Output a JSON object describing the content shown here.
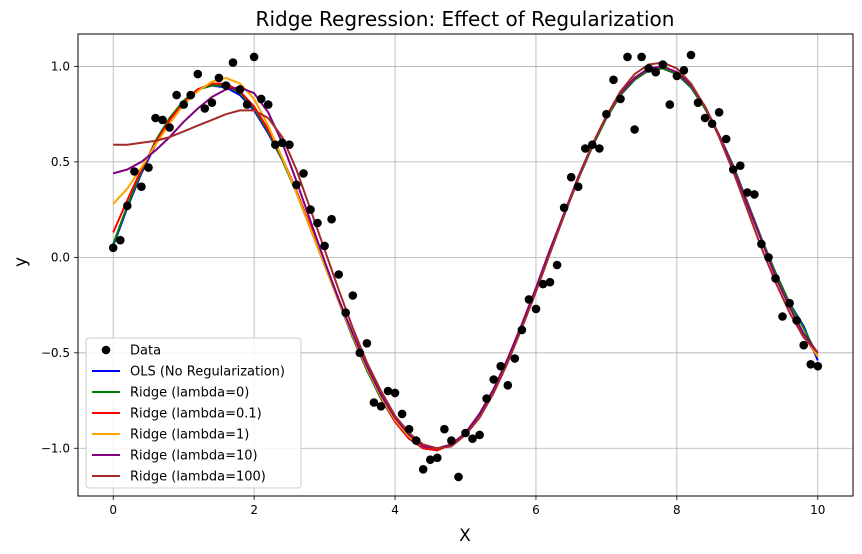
{
  "chart_data": {
    "type": "line",
    "title": "Ridge Regression: Effect of Regularization",
    "xlabel": "X",
    "ylabel": "y",
    "xlim": [
      -0.5,
      10.5
    ],
    "ylim": [
      -1.25,
      1.17
    ],
    "xticks": [
      0,
      2,
      4,
      6,
      8,
      10
    ],
    "yticks": [
      -1.0,
      -0.5,
      0.0,
      0.5,
      1.0
    ],
    "xtick_labels": [
      "0",
      "2",
      "4",
      "6",
      "8",
      "10"
    ],
    "ytick_labels": [
      "−1.0",
      "−0.5",
      "0.0",
      "0.5",
      "1.0"
    ],
    "grid": true,
    "legend_position": "lower-left",
    "scatter": {
      "name": "Data",
      "color": "#000000",
      "x": [
        0,
        0.1,
        0.2,
        0.3,
        0.4,
        0.5,
        0.6,
        0.7,
        0.8,
        0.9,
        1.0,
        1.1,
        1.2,
        1.3,
        1.4,
        1.5,
        1.6,
        1.7,
        1.8,
        1.9,
        2.0,
        2.1,
        2.2,
        2.3,
        2.4,
        2.5,
        2.6,
        2.7,
        2.8,
        2.9,
        3.0,
        3.1,
        3.2,
        3.3,
        3.4,
        3.5,
        3.6,
        3.7,
        3.8,
        3.9,
        4.0,
        4.1,
        4.2,
        4.3,
        4.4,
        4.5,
        4.6,
        4.7,
        4.8,
        4.9,
        5.0,
        5.1,
        5.2,
        5.3,
        5.4,
        5.5,
        5.6,
        5.7,
        5.8,
        5.9,
        6.0,
        6.1,
        6.2,
        6.3,
        6.4,
        6.5,
        6.6,
        6.7,
        6.8,
        6.9,
        7.0,
        7.1,
        7.2,
        7.3,
        7.4,
        7.5,
        7.6,
        7.7,
        7.8,
        7.9,
        8.0,
        8.1,
        8.2,
        8.3,
        8.4,
        8.5,
        8.6,
        8.7,
        8.8,
        8.9,
        9.0,
        9.1,
        9.2,
        9.3,
        9.4,
        9.5,
        9.6,
        9.7,
        9.8,
        9.9,
        10.0
      ],
      "y": [
        0.05,
        0.09,
        0.27,
        0.45,
        0.37,
        0.47,
        0.73,
        0.72,
        0.68,
        0.85,
        0.8,
        0.85,
        0.96,
        0.78,
        0.81,
        0.94,
        0.9,
        1.02,
        0.88,
        0.8,
        1.05,
        0.83,
        0.8,
        0.59,
        0.6,
        0.59,
        0.38,
        0.44,
        0.25,
        0.18,
        0.06,
        0.2,
        -0.09,
        -0.29,
        -0.2,
        -0.5,
        -0.45,
        -0.76,
        -0.78,
        -0.7,
        -0.71,
        -0.82,
        -0.9,
        -0.96,
        -1.11,
        -1.06,
        -1.05,
        -0.9,
        -0.96,
        -1.15,
        -0.92,
        -0.95,
        -0.93,
        -0.74,
        -0.64,
        -0.57,
        -0.67,
        -0.53,
        -0.38,
        -0.22,
        -0.27,
        -0.14,
        -0.13,
        -0.04,
        0.26,
        0.42,
        0.37,
        0.57,
        0.59,
        0.57,
        0.75,
        0.93,
        0.83,
        1.05,
        0.67,
        1.05,
        0.99,
        0.97,
        1.01,
        0.8,
        0.95,
        0.98,
        1.06,
        0.81,
        0.73,
        0.7,
        0.76,
        0.62,
        0.46,
        0.48,
        0.34,
        0.33,
        0.07,
        0.0,
        -0.11,
        -0.31,
        -0.24,
        -0.33,
        -0.46,
        -0.56,
        -0.57
      ]
    },
    "series": [
      {
        "name": "OLS (No Regularization)",
        "color": "#0000ff",
        "x": [
          0,
          0.2,
          0.4,
          0.6,
          0.8,
          1.0,
          1.2,
          1.4,
          1.6,
          1.8,
          2.0,
          2.2,
          2.4,
          2.6,
          2.8,
          3.0,
          3.2,
          3.4,
          3.6,
          3.8,
          4.0,
          4.2,
          4.4,
          4.6,
          4.8,
          5.0,
          5.2,
          5.4,
          5.6,
          5.8,
          6.0,
          6.2,
          6.4,
          6.6,
          6.8,
          7.0,
          7.2,
          7.4,
          7.6,
          7.8,
          8.0,
          8.2,
          8.4,
          8.6,
          8.8,
          9.0,
          9.2,
          9.4,
          9.6,
          9.8,
          10.0
        ],
        "y": [
          0.06,
          0.26,
          0.44,
          0.59,
          0.72,
          0.82,
          0.88,
          0.9,
          0.89,
          0.85,
          0.77,
          0.65,
          0.51,
          0.34,
          0.15,
          -0.04,
          -0.23,
          -0.42,
          -0.59,
          -0.74,
          -0.86,
          -0.95,
          -1.0,
          -1.01,
          -0.98,
          -0.92,
          -0.82,
          -0.69,
          -0.54,
          -0.36,
          -0.17,
          0.03,
          0.22,
          0.41,
          0.58,
          0.73,
          0.85,
          0.93,
          0.98,
          0.99,
          0.96,
          0.89,
          0.78,
          0.64,
          0.48,
          0.29,
          0.1,
          -0.08,
          -0.24,
          -0.36,
          -0.54
        ]
      },
      {
        "name": "Ridge (lambda=0)",
        "color": "#008000",
        "x": [
          0,
          0.2,
          0.4,
          0.6,
          0.8,
          1.0,
          1.2,
          1.4,
          1.6,
          1.8,
          2.0,
          2.2,
          2.4,
          2.6,
          2.8,
          3.0,
          3.2,
          3.4,
          3.6,
          3.8,
          4.0,
          4.2,
          4.4,
          4.6,
          4.8,
          5.0,
          5.2,
          5.4,
          5.6,
          5.8,
          6.0,
          6.2,
          6.4,
          6.6,
          6.8,
          7.0,
          7.2,
          7.4,
          7.6,
          7.8,
          8.0,
          8.2,
          8.4,
          8.6,
          8.8,
          9.0,
          9.2,
          9.4,
          9.6,
          9.8,
          10.0
        ],
        "y": [
          0.07,
          0.27,
          0.45,
          0.61,
          0.73,
          0.82,
          0.88,
          0.9,
          0.9,
          0.86,
          0.78,
          0.66,
          0.51,
          0.34,
          0.15,
          -0.04,
          -0.23,
          -0.42,
          -0.59,
          -0.74,
          -0.86,
          -0.95,
          -1.0,
          -1.01,
          -0.98,
          -0.92,
          -0.82,
          -0.69,
          -0.53,
          -0.36,
          -0.17,
          0.03,
          0.22,
          0.41,
          0.58,
          0.73,
          0.85,
          0.93,
          0.98,
          0.99,
          0.96,
          0.89,
          0.78,
          0.64,
          0.48,
          0.29,
          0.1,
          -0.08,
          -0.24,
          -0.37,
          -0.52
        ]
      },
      {
        "name": "Ridge (lambda=0.1)",
        "color": "#ff0000",
        "x": [
          0,
          0.2,
          0.4,
          0.6,
          0.8,
          1.0,
          1.2,
          1.4,
          1.6,
          1.8,
          2.0,
          2.2,
          2.4,
          2.6,
          2.8,
          3.0,
          3.2,
          3.4,
          3.6,
          3.8,
          4.0,
          4.2,
          4.4,
          4.6,
          4.8,
          5.0,
          5.2,
          5.4,
          5.6,
          5.8,
          6.0,
          6.2,
          6.4,
          6.6,
          6.8,
          7.0,
          7.2,
          7.4,
          7.6,
          7.8,
          8.0,
          8.2,
          8.4,
          8.6,
          8.8,
          9.0,
          9.2,
          9.4,
          9.6,
          9.8,
          10.0
        ],
        "y": [
          0.13,
          0.3,
          0.46,
          0.6,
          0.72,
          0.81,
          0.88,
          0.91,
          0.91,
          0.87,
          0.79,
          0.67,
          0.52,
          0.35,
          0.16,
          -0.03,
          -0.22,
          -0.41,
          -0.58,
          -0.73,
          -0.86,
          -0.95,
          -1.0,
          -1.01,
          -0.98,
          -0.92,
          -0.82,
          -0.69,
          -0.53,
          -0.35,
          -0.16,
          0.04,
          0.23,
          0.42,
          0.59,
          0.74,
          0.86,
          0.94,
          0.99,
          1.0,
          0.97,
          0.9,
          0.79,
          0.64,
          0.47,
          0.28,
          0.09,
          -0.1,
          -0.26,
          -0.41,
          -0.52
        ]
      },
      {
        "name": "Ridge (lambda=1)",
        "color": "#ffa500",
        "x": [
          0,
          0.2,
          0.4,
          0.6,
          0.8,
          1.0,
          1.2,
          1.4,
          1.6,
          1.8,
          2.0,
          2.2,
          2.4,
          2.6,
          2.8,
          3.0,
          3.2,
          3.4,
          3.6,
          3.8,
          4.0,
          4.2,
          4.4,
          4.6,
          4.8,
          5.0,
          5.2,
          5.4,
          5.6,
          5.8,
          6.0,
          6.2,
          6.4,
          6.6,
          6.8,
          7.0,
          7.2,
          7.4,
          7.6,
          7.8,
          8.0,
          8.2,
          8.4,
          8.6,
          8.8,
          9.0,
          9.2,
          9.4,
          9.6,
          9.8,
          10.0
        ],
        "y": [
          0.28,
          0.36,
          0.47,
          0.59,
          0.7,
          0.8,
          0.87,
          0.92,
          0.94,
          0.91,
          0.83,
          0.69,
          0.52,
          0.34,
          0.15,
          -0.04,
          -0.23,
          -0.41,
          -0.58,
          -0.73,
          -0.85,
          -0.94,
          -0.99,
          -1.0,
          -0.98,
          -0.92,
          -0.82,
          -0.69,
          -0.53,
          -0.35,
          -0.16,
          0.04,
          0.23,
          0.42,
          0.59,
          0.74,
          0.86,
          0.94,
          0.99,
          1.0,
          0.97,
          0.9,
          0.79,
          0.64,
          0.47,
          0.28,
          0.09,
          -0.1,
          -0.26,
          -0.4,
          -0.52
        ]
      },
      {
        "name": "Ridge (lambda=10)",
        "color": "#800080",
        "x": [
          0,
          0.2,
          0.4,
          0.6,
          0.8,
          1.0,
          1.2,
          1.4,
          1.6,
          1.8,
          2.0,
          2.2,
          2.4,
          2.6,
          2.8,
          3.0,
          3.2,
          3.4,
          3.6,
          3.8,
          4.0,
          4.2,
          4.4,
          4.6,
          4.8,
          5.0,
          5.2,
          5.4,
          5.6,
          5.8,
          6.0,
          6.2,
          6.4,
          6.6,
          6.8,
          7.0,
          7.2,
          7.4,
          7.6,
          7.8,
          8.0,
          8.2,
          8.4,
          8.6,
          8.8,
          9.0,
          9.2,
          9.4,
          9.6,
          9.8,
          10.0
        ],
        "y": [
          0.44,
          0.46,
          0.5,
          0.56,
          0.63,
          0.71,
          0.78,
          0.84,
          0.88,
          0.89,
          0.86,
          0.76,
          0.6,
          0.4,
          0.19,
          -0.02,
          -0.22,
          -0.4,
          -0.57,
          -0.72,
          -0.84,
          -0.93,
          -0.99,
          -1.0,
          -0.98,
          -0.92,
          -0.82,
          -0.69,
          -0.53,
          -0.35,
          -0.16,
          0.04,
          0.23,
          0.42,
          0.59,
          0.74,
          0.86,
          0.94,
          0.99,
          1.0,
          0.97,
          0.9,
          0.79,
          0.64,
          0.47,
          0.28,
          0.09,
          -0.1,
          -0.26,
          -0.4,
          -0.5
        ]
      },
      {
        "name": "Ridge (lambda=100)",
        "color": "#a52a2a",
        "x": [
          0,
          0.2,
          0.4,
          0.6,
          0.8,
          1.0,
          1.2,
          1.4,
          1.6,
          1.8,
          2.0,
          2.2,
          2.4,
          2.6,
          2.8,
          3.0,
          3.2,
          3.4,
          3.6,
          3.8,
          4.0,
          4.2,
          4.4,
          4.6,
          4.8,
          5.0,
          5.2,
          5.4,
          5.6,
          5.8,
          6.0,
          6.2,
          6.4,
          6.6,
          6.8,
          7.0,
          7.2,
          7.4,
          7.6,
          7.8,
          8.0,
          8.2,
          8.4,
          8.6,
          8.8,
          9.0,
          9.2,
          9.4,
          9.6,
          9.8,
          10.0
        ],
        "y": [
          0.59,
          0.59,
          0.6,
          0.61,
          0.63,
          0.66,
          0.69,
          0.72,
          0.75,
          0.77,
          0.77,
          0.73,
          0.63,
          0.46,
          0.25,
          0.04,
          -0.17,
          -0.37,
          -0.55,
          -0.7,
          -0.83,
          -0.92,
          -0.98,
          -1.0,
          -0.99,
          -0.93,
          -0.84,
          -0.71,
          -0.55,
          -0.37,
          -0.18,
          0.02,
          0.22,
          0.41,
          0.59,
          0.74,
          0.87,
          0.96,
          1.01,
          1.02,
          0.99,
          0.91,
          0.79,
          0.63,
          0.45,
          0.25,
          0.05,
          -0.13,
          -0.29,
          -0.42,
          -0.5
        ]
      }
    ]
  }
}
